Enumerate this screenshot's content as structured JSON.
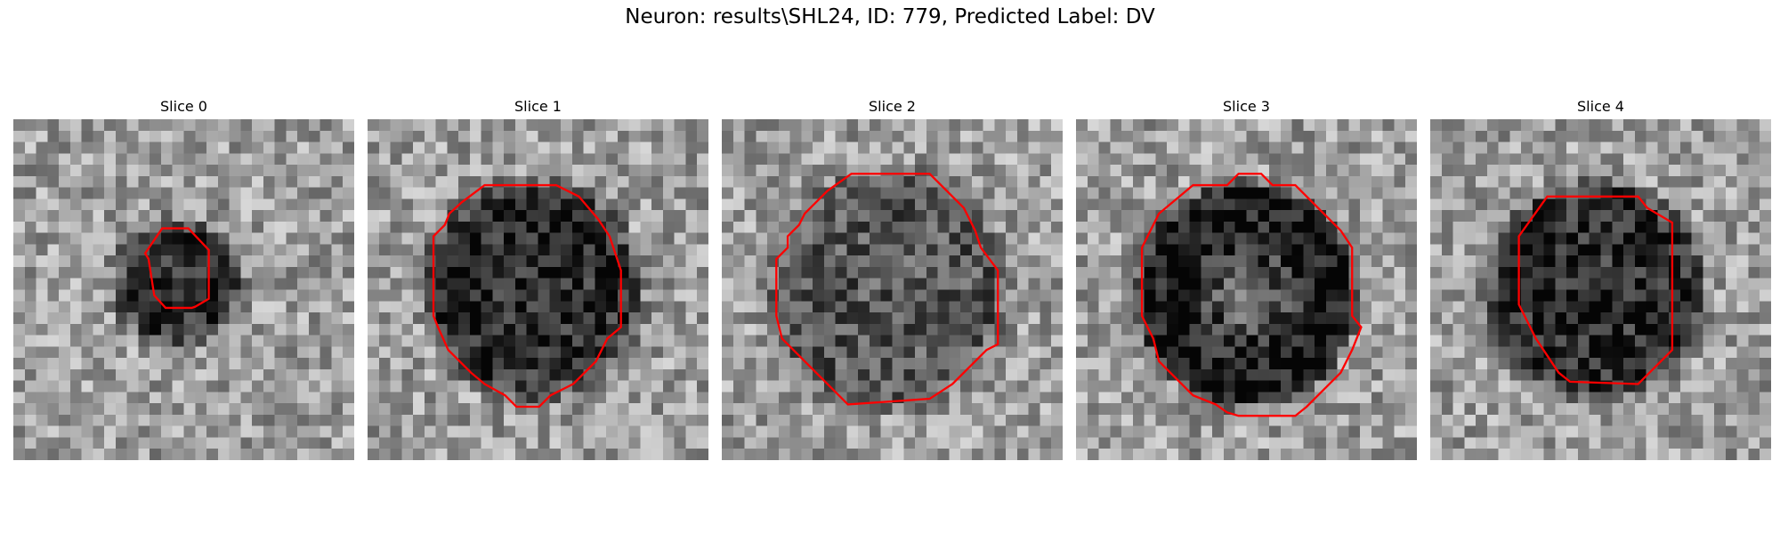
{
  "figure": {
    "title": "Neuron: results\\SHL24, ID: 779, Predicted Label: DV"
  },
  "colors": {
    "contour": "#ff0000",
    "background": "#ffffff"
  },
  "panels": [
    {
      "title": "Slice 0",
      "style": "blob",
      "seed": 11
    },
    {
      "title": "Slice 1",
      "style": "dark",
      "seed": 23
    },
    {
      "title": "Slice 2",
      "style": "mid",
      "seed": 37
    },
    {
      "title": "Slice 3",
      "style": "ring",
      "seed": 41
    },
    {
      "title": "Slice 4",
      "style": "dark",
      "seed": 53
    }
  ]
}
